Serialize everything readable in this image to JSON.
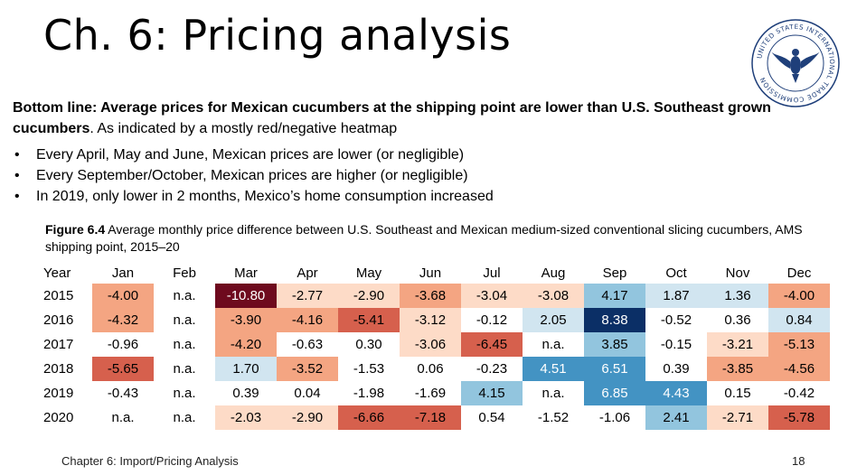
{
  "slide": {
    "title": "Ch. 6: Pricing analysis",
    "footer": "Chapter 6: Import/Pricing Analysis",
    "page_number": "18"
  },
  "seal": {
    "text": "UNITED STATES INTERNATIONAL TRADE COMMISSION"
  },
  "bottom_line": {
    "bold": "Bottom line: Average prices for Mexican cucumbers at the shipping point are lower than U.S. Southeast grown cucumbers",
    "rest": ". As indicated by a mostly red/negative heatmap"
  },
  "bullets": [
    "Every April, May and June, Mexican prices are lower (or negligible)",
    "Every September/October, Mexican prices are higher (or negligible)",
    "In 2019, only lower in 2 months, Mexico’s home consumption increased"
  ],
  "figure": {
    "label": "Figure 6.4",
    "caption": " Average monthly price difference between U.S. Southeast and Mexican medium-sized conventional slicing cucumbers, AMS shipping point, 2015–20"
  },
  "colors": {
    "neg_max": "#6e0a1e",
    "neg_high": "#d6604d",
    "neg_mid": "#f4a582",
    "neg_low": "#fddbc7",
    "pos_low": "#d1e5f0",
    "pos_mid": "#92c5de",
    "pos_high": "#4393c3",
    "pos_max": "#0b2f66"
  },
  "chart_data": {
    "type": "heatmap",
    "row_header": "Year",
    "columns": [
      "Jan",
      "Feb",
      "Mar",
      "Apr",
      "May",
      "Jun",
      "Jul",
      "Aug",
      "Sep",
      "Oct",
      "Nov",
      "Dec"
    ],
    "rows": [
      {
        "year": "2015",
        "values": [
          "-4.00",
          "n.a.",
          "-10.80",
          "-2.77",
          "-2.90",
          "-3.68",
          "-3.04",
          "-3.08",
          "4.17",
          "1.87",
          "1.36",
          "-4.00"
        ]
      },
      {
        "year": "2016",
        "values": [
          "-4.32",
          "n.a.",
          "-3.90",
          "-4.16",
          "-5.41",
          "-3.12",
          "-0.12",
          "2.05",
          "8.38",
          "-0.52",
          "0.36",
          "0.84"
        ]
      },
      {
        "year": "2017",
        "values": [
          "-0.96",
          "n.a.",
          "-4.20",
          "-0.63",
          "0.30",
          "-3.06",
          "-6.45",
          "n.a.",
          "3.85",
          "-0.15",
          "-3.21",
          "-5.13"
        ]
      },
      {
        "year": "2018",
        "values": [
          "-5.65",
          "n.a.",
          "1.70",
          "-3.52",
          "-1.53",
          "0.06",
          "-0.23",
          "4.51",
          "6.51",
          "0.39",
          "-3.85",
          "-4.56"
        ]
      },
      {
        "year": "2019",
        "values": [
          "-0.43",
          "n.a.",
          "0.39",
          "0.04",
          "-1.98",
          "-1.69",
          "4.15",
          "n.a.",
          "6.85",
          "4.43",
          "0.15",
          "-0.42"
        ]
      },
      {
        "year": "2020",
        "values": [
          "n.a.",
          "n.a.",
          "-2.03",
          "-2.90",
          "-6.66",
          "-7.18",
          "0.54",
          "-1.52",
          "-1.06",
          "2.41",
          "-2.71",
          "-5.78"
        ]
      }
    ]
  }
}
